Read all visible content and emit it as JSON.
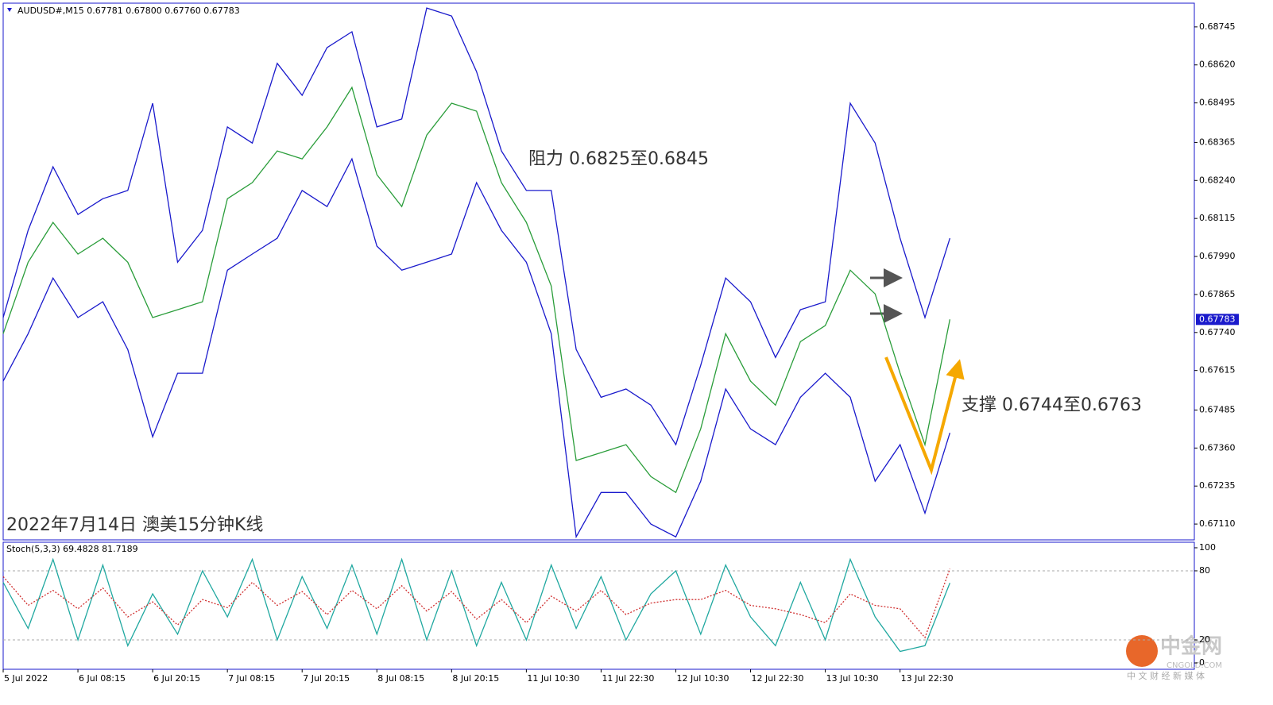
{
  "chart_data": [
    {
      "type": "line",
      "title": "AUDUSD#,M15  0.67781 0.67800 0.67760 0.67783",
      "x": [
        0,
        16,
        32,
        48,
        64,
        80,
        96,
        112,
        128,
        144,
        160,
        176,
        192,
        208,
        224,
        240,
        256,
        272,
        288,
        304,
        320,
        336,
        352,
        368,
        384,
        400,
        416,
        432,
        448,
        464,
        480,
        496,
        512,
        528,
        544,
        560,
        576,
        592,
        608
      ],
      "xlim": [
        0,
        765
      ],
      "ylim": [
        0.67058,
        0.68823
      ],
      "yticks": [
        0.68745,
        {
          "value": 0.6862,
          "label": "0.68620"
        },
        0.68495,
        0.68365,
        {
          "value": 0.6824,
          "label": "0.68240"
        },
        0.68115,
        {
          "value": 0.6799,
          "label": "0.67990"
        },
        0.67865,
        {
          "value": 0.6774,
          "label": "0.67740"
        },
        0.67615,
        0.67485,
        {
          "value": 0.6736,
          "label": "0.67360"
        },
        0.67235,
        {
          "value": 0.6711,
          "label": "0.67110"
        }
      ],
      "last_price": 0.67783,
      "series": [
        {
          "color": "#2a9d3a",
          "values": [
            0.67736,
            0.67971,
            0.68102,
            0.67998,
            0.6805,
            0.67971,
            0.67789,
            0.67815,
            0.67841,
            0.6818,
            0.68233,
            0.68337,
            0.68311,
            0.68416,
            0.68546,
            0.68259,
            0.68154,
            0.68389,
            0.68494,
            0.68468,
            0.68233,
            0.68102,
            0.67893,
            0.67319,
            0.67345,
            0.67371,
            0.67266,
            0.67214,
            0.67423,
            0.67736,
            0.6758,
            0.67501,
            0.6771,
            0.67763,
            0.67945,
            0.67867,
            0.67606,
            0.67371,
            0.67783
          ]
        },
        {
          "color": "#1a1acc",
          "values": [
            0.67789,
            0.68076,
            0.68285,
            0.68128,
            0.6818,
            0.68207,
            0.68494,
            0.67971,
            0.68076,
            0.68416,
            0.68363,
            0.68625,
            0.6852,
            0.68677,
            0.68729,
            0.68416,
            0.68442,
            0.68807,
            0.68781,
            0.68598,
            0.68337,
            0.68207,
            0.68207,
            0.67684,
            0.67527,
            0.67554,
            0.67501,
            0.67371,
            0.67632,
            0.67919,
            0.67841,
            0.67658,
            0.67815,
            0.67841,
            0.68494,
            0.68363,
            0.6805,
            0.67789,
            0.6805
          ]
        },
        {
          "color": "#1a1acc",
          "values": [
            0.6758,
            0.67736,
            0.67919,
            0.67789,
            0.67841,
            0.67684,
            0.67397,
            0.67606,
            0.67606,
            0.67945,
            0.67998,
            0.6805,
            0.68207,
            0.68154,
            0.68311,
            0.68024,
            0.67945,
            0.67971,
            0.67998,
            0.68233,
            0.68076,
            0.67971,
            0.67736,
            0.67068,
            0.67214,
            0.67214,
            0.6711,
            0.67068,
            0.67251,
            0.67554,
            0.67423,
            0.67371,
            0.67527,
            0.67606,
            0.67527,
            0.67251,
            0.67371,
            0.67146,
            0.6741
          ]
        }
      ],
      "annotations": [
        "阻力 0.6825至0.6845",
        "支撑 0.6744至0.6763",
        "2022年7月14日 澳美15分钟K线"
      ]
    },
    {
      "type": "line",
      "title": "Stoch(5,3,3) 69.4828 81.7189",
      "x": [
        0,
        16,
        32,
        48,
        64,
        80,
        96,
        112,
        128,
        144,
        160,
        176,
        192,
        208,
        224,
        240,
        256,
        272,
        288,
        304,
        320,
        336,
        352,
        368,
        384,
        400,
        416,
        432,
        448,
        464,
        480,
        496,
        512,
        528,
        544,
        560,
        576,
        592,
        608
      ],
      "xlim": [
        0,
        765
      ],
      "ylim": [
        -5.5,
        104.8
      ],
      "yticks": [
        100,
        80,
        20,
        0
      ],
      "levels": [
        80,
        20
      ],
      "xticks": [
        {
          "value": 0,
          "label": "5 Jul 2022"
        },
        {
          "value": 48,
          "label": "6 Jul 08:15"
        },
        {
          "value": 96,
          "label": "6 Jul 20:15"
        },
        {
          "value": 144,
          "label": "7 Jul 08:15"
        },
        {
          "value": 192,
          "label": "7 Jul 20:15"
        },
        {
          "value": 240,
          "label": "8 Jul 08:15"
        },
        {
          "value": 288,
          "label": "8 Jul 20:15"
        },
        {
          "value": 336,
          "label": "11 Jul 10:30"
        },
        {
          "value": 384,
          "label": "11 Jul 22:30"
        },
        {
          "value": 432,
          "label": "12 Jul 10:30"
        },
        {
          "value": 480,
          "label": "12 Jul 22:30"
        },
        {
          "value": 528,
          "label": "13 Jul 10:30"
        },
        {
          "value": 576,
          "label": "13 Jul 22:30"
        }
      ],
      "series": [
        {
          "color": "#20a8a0",
          "dashed": false,
          "values": [
            70,
            30,
            90,
            20,
            85,
            15,
            60,
            25,
            80,
            40,
            90,
            20,
            75,
            30,
            85,
            25,
            90,
            20,
            80,
            15,
            70,
            20,
            85,
            30,
            75,
            20,
            60,
            80,
            25,
            85,
            40,
            15,
            70,
            20,
            90,
            40,
            10,
            15,
            69.4828
          ]
        },
        {
          "color": "#d03030",
          "dashed": true,
          "values": [
            75,
            50,
            63,
            47,
            65,
            40,
            53,
            33,
            55,
            48,
            70,
            50,
            62,
            42,
            63,
            47,
            67,
            45,
            62,
            38,
            55,
            35,
            58,
            45,
            63,
            42,
            52,
            55,
            55,
            63,
            50,
            47,
            42,
            35,
            60,
            50,
            47,
            22,
            81.7189
          ]
        }
      ]
    }
  ],
  "watermark": {
    "name": "中金网",
    "site": "CNGOLD.COM",
    "slogan": "中 文 财 经 新 媒 体"
  }
}
